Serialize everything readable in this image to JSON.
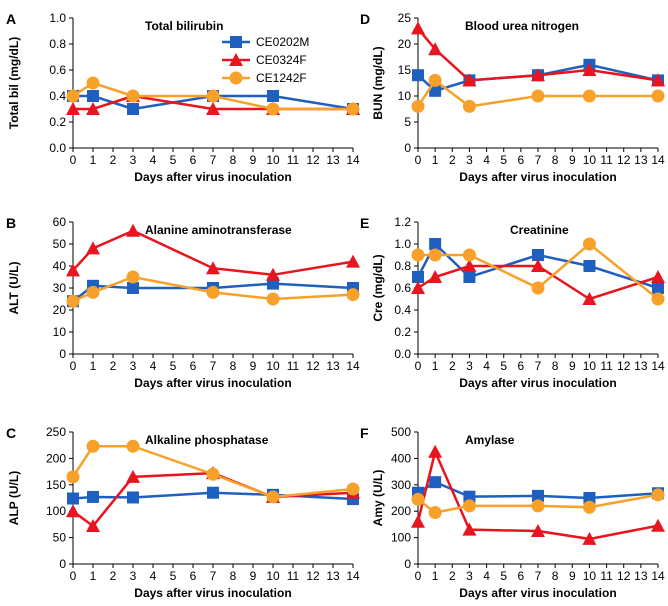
{
  "figure": {
    "series": [
      {
        "name": "CE0202M",
        "color": "#1f5fbf",
        "marker": "square"
      },
      {
        "name": "CE0324F",
        "color": "#e8141e",
        "marker": "triangle"
      },
      {
        "name": "CE1242F",
        "color": "#f7a12a",
        "marker": "circle"
      }
    ]
  },
  "chart_data": [
    {
      "type": "line",
      "panel": "A",
      "title": "Total bilirubin",
      "xlabel": "Days after virus inoculation",
      "ylabel": "Total bil (mg/dL)",
      "xlim": [
        0,
        14
      ],
      "ylim": [
        0,
        1.0
      ],
      "yticks": [
        0.0,
        0.2,
        0.4,
        0.6,
        0.8,
        1.0
      ],
      "ytick_labels": [
        "0.0",
        "0.2",
        "0.4",
        "0.6",
        "0.8",
        "1.0"
      ],
      "xticks": [
        0,
        1,
        2,
        3,
        4,
        5,
        6,
        7,
        8,
        9,
        10,
        11,
        12,
        13,
        14
      ],
      "xtick_labels": [
        "0",
        "1",
        "2",
        "3",
        "4",
        "5",
        "6",
        "7",
        "8",
        "9",
        "10",
        "11",
        "12",
        "13",
        "14"
      ],
      "x": [
        0,
        1,
        3,
        7,
        10,
        14
      ],
      "legend": "top-right",
      "series": [
        {
          "name": "CE0202M",
          "values": [
            0.4,
            0.4,
            0.3,
            0.4,
            0.4,
            0.3
          ]
        },
        {
          "name": "CE0324F",
          "values": [
            0.3,
            0.3,
            0.4,
            0.3,
            0.3,
            0.3
          ]
        },
        {
          "name": "CE1242F",
          "values": [
            0.4,
            0.5,
            0.4,
            0.4,
            0.3,
            0.3
          ]
        }
      ]
    },
    {
      "type": "line",
      "panel": "B",
      "title": "Alanine aminotransferase",
      "xlabel": "Days after virus inoculation",
      "ylabel": "ALT (U/L)",
      "xlim": [
        0,
        14
      ],
      "ylim": [
        0,
        60
      ],
      "yticks": [
        0,
        10,
        20,
        30,
        40,
        50,
        60
      ],
      "ytick_labels": [
        "0",
        "10",
        "20",
        "30",
        "40",
        "50",
        "60"
      ],
      "xticks": [
        0,
        1,
        2,
        3,
        4,
        5,
        6,
        7,
        8,
        9,
        10,
        11,
        12,
        13,
        14
      ],
      "xtick_labels": [
        "0",
        "1",
        "2",
        "3",
        "4",
        "5",
        "6",
        "7",
        "8",
        "9",
        "10",
        "11",
        "12",
        "13",
        "14"
      ],
      "x": [
        0,
        1,
        3,
        7,
        10,
        14
      ],
      "series": [
        {
          "name": "CE0202M",
          "values": [
            24,
            31,
            30,
            30,
            32,
            30
          ]
        },
        {
          "name": "CE0324F",
          "values": [
            38,
            48,
            56,
            39,
            36,
            42
          ]
        },
        {
          "name": "CE1242F",
          "values": [
            24,
            28,
            35,
            28,
            25,
            27
          ]
        }
      ]
    },
    {
      "type": "line",
      "panel": "C",
      "title": "Alkaline phosphatase",
      "xlabel": "Days after virus inoculation",
      "ylabel": "ALP (U/L)",
      "xlim": [
        0,
        14
      ],
      "ylim": [
        0,
        250
      ],
      "yticks": [
        0,
        50,
        100,
        150,
        200,
        250
      ],
      "ytick_labels": [
        "0",
        "50",
        "100",
        "150",
        "200",
        "250"
      ],
      "xticks": [
        0,
        1,
        2,
        3,
        4,
        5,
        6,
        7,
        8,
        9,
        10,
        11,
        12,
        13,
        14
      ],
      "xtick_labels": [
        "0",
        "1",
        "2",
        "3",
        "4",
        "5",
        "6",
        "7",
        "8",
        "9",
        "10",
        "11",
        "12",
        "13",
        "14"
      ],
      "x": [
        0,
        1,
        3,
        7,
        10,
        14
      ],
      "series": [
        {
          "name": "CE0202M",
          "values": [
            124,
            127,
            126,
            135,
            131,
            123
          ]
        },
        {
          "name": "CE0324F",
          "values": [
            100,
            72,
            165,
            172,
            127,
            135
          ]
        },
        {
          "name": "CE1242F",
          "values": [
            165,
            223,
            223,
            170,
            127,
            142
          ]
        }
      ]
    },
    {
      "type": "line",
      "panel": "D",
      "title": "Blood urea nitrogen",
      "xlabel": "Days after virus inoculation",
      "ylabel": "BUN (mg/dL)",
      "xlim": [
        0,
        14
      ],
      "ylim": [
        0,
        25
      ],
      "yticks": [
        0,
        5,
        10,
        15,
        20,
        25
      ],
      "ytick_labels": [
        "0",
        "5",
        "10",
        "15",
        "20",
        "25"
      ],
      "xticks": [
        0,
        1,
        2,
        3,
        4,
        5,
        6,
        7,
        8,
        9,
        10,
        11,
        12,
        13,
        14
      ],
      "xtick_labels": [
        "0",
        "1",
        "2",
        "3",
        "4",
        "5",
        "6",
        "7",
        "8",
        "9",
        "10",
        "11",
        "12",
        "13",
        "14"
      ],
      "x": [
        0,
        1,
        3,
        7,
        10,
        14
      ],
      "series": [
        {
          "name": "CE0202M",
          "values": [
            14,
            11,
            13,
            14,
            16,
            13
          ]
        },
        {
          "name": "CE0324F",
          "values": [
            23,
            19,
            13,
            14,
            15,
            13
          ]
        },
        {
          "name": "CE1242F",
          "values": [
            8,
            13,
            8,
            10,
            10,
            10
          ]
        }
      ]
    },
    {
      "type": "line",
      "panel": "E",
      "title": "Creatinine",
      "xlabel": "Days after virus inoculation",
      "ylabel": "Cre (mg/dL)",
      "xlim": [
        0,
        14
      ],
      "ylim": [
        0,
        1.2
      ],
      "yticks": [
        0.0,
        0.2,
        0.4,
        0.6,
        0.8,
        1.0,
        1.2
      ],
      "ytick_labels": [
        "0.0",
        "0.2",
        "0.4",
        "0.6",
        "0.8",
        "1.0",
        "1.2"
      ],
      "xticks": [
        0,
        1,
        2,
        3,
        4,
        5,
        6,
        7,
        8,
        9,
        10,
        11,
        12,
        13,
        14
      ],
      "xtick_labels": [
        "0",
        "1",
        "2",
        "3",
        "4",
        "5",
        "6",
        "7",
        "8",
        "9",
        "10",
        "11",
        "12",
        "13",
        "14"
      ],
      "x": [
        0,
        1,
        3,
        7,
        10,
        14
      ],
      "series": [
        {
          "name": "CE0202M",
          "values": [
            0.7,
            1.0,
            0.7,
            0.9,
            0.8,
            0.6
          ]
        },
        {
          "name": "CE0324F",
          "values": [
            0.6,
            0.7,
            0.8,
            0.8,
            0.5,
            0.7
          ]
        },
        {
          "name": "CE1242F",
          "values": [
            0.9,
            0.9,
            0.9,
            0.6,
            1.0,
            0.5
          ]
        }
      ]
    },
    {
      "type": "line",
      "panel": "F",
      "title": "Amylase",
      "xlabel": "Days after virus inoculation",
      "ylabel": "Amy (U/L)",
      "xlim": [
        0,
        14
      ],
      "ylim": [
        0,
        500
      ],
      "yticks": [
        0,
        100,
        200,
        300,
        400,
        500
      ],
      "ytick_labels": [
        "0",
        "100",
        "200",
        "300",
        "400",
        "500"
      ],
      "xticks": [
        0,
        1,
        2,
        3,
        4,
        5,
        6,
        7,
        8,
        9,
        10,
        11,
        12,
        13,
        14
      ],
      "xtick_labels": [
        "0",
        "1",
        "2",
        "3",
        "4",
        "5",
        "6",
        "7",
        "8",
        "9",
        "10",
        "11",
        "12",
        "13",
        "14"
      ],
      "x": [
        0,
        1,
        3,
        7,
        10,
        14
      ],
      "series": [
        {
          "name": "CE0202M",
          "values": [
            270,
            310,
            255,
            258,
            250,
            268
          ]
        },
        {
          "name": "CE0324F",
          "values": [
            160,
            425,
            130,
            125,
            95,
            145
          ]
        },
        {
          "name": "CE1242F",
          "values": [
            245,
            195,
            220,
            220,
            215,
            262
          ]
        }
      ]
    }
  ]
}
